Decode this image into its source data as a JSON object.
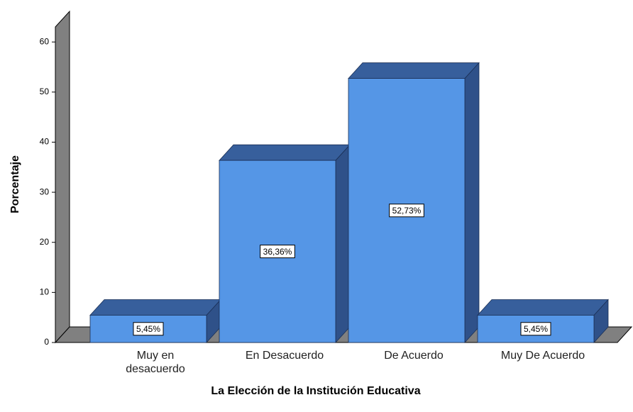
{
  "chart_data": {
    "type": "bar3d",
    "x_label": "La Elección de la Institución Educativa",
    "y_label": "Porcentaje",
    "categories": [
      "Muy en desacuerdo",
      "En Desacuerdo",
      "De Acuerdo",
      "Muy De Acuerdo"
    ],
    "values": [
      5.45,
      36.36,
      52.73,
      5.45
    ],
    "value_labels": [
      "5,45%",
      "36,36%",
      "52,73%",
      "5,45%"
    ],
    "color": "#5596e6",
    "ylim": [
      0,
      63
    ],
    "yticks": [
      0,
      10,
      20,
      30,
      40,
      50,
      60
    ]
  }
}
